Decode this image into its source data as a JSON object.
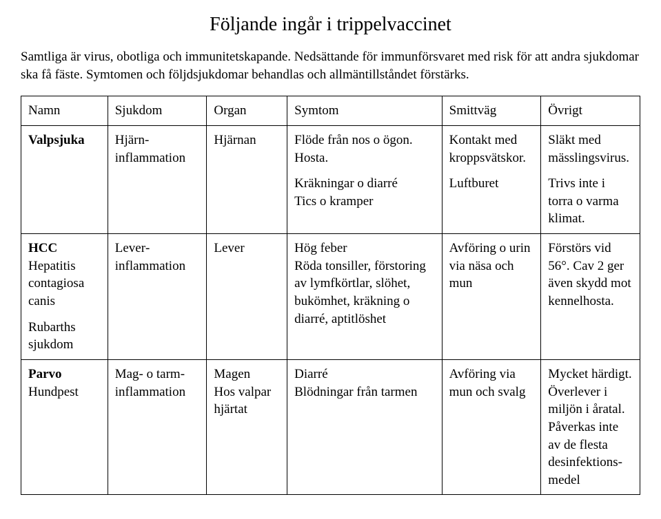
{
  "title": "Följande ingår i trippelvaccinet",
  "intro": "Samtliga är virus, obotliga och immunitetskapande. Nedsättande för immunförsvaret med risk för att andra sjukdomar ska få fäste. Symtomen och följdsjukdomar behandlas och allmäntillståndet förstärks.",
  "headers": {
    "c0": "Namn",
    "c1": "Sjukdom",
    "c2": "Organ",
    "c3": "Symtom",
    "c4": "Smittväg",
    "c5": "Övrigt"
  },
  "rows": {
    "r0": {
      "name": "Valpsjuka",
      "sjukdom": "Hjärn­inflammation",
      "organ": "Hjärnan",
      "symtom_a": "Flöde från nos o ögon. Hosta.",
      "symtom_b": "Kräkningar o diarré",
      "symtom_c": "Tics o kramper",
      "smitt_a": "Kontakt med kroppsvätskor.",
      "smitt_b": "Luftburet",
      "ovrigt_a": "Släkt med mässlingsvirus.",
      "ovrigt_b": "Trivs inte i torra o varma klimat."
    },
    "r1": {
      "name_a": "HCC",
      "name_b": "Hepatitis contagiosa canis",
      "name_c": "Rubarths sjukdom",
      "sjukdom": "Lever­inflammation",
      "organ": "Lever",
      "symtom_a": "Hög feber",
      "symtom_b": "Röda tonsiller, för­storing av lymf­körtlar, slöhet, bukömhet, kräkning o diarré, aptitlöshet",
      "smitt": "Avföring o urin via näsa och mun",
      "ovrigt": "Förstörs vid 56°. Cav 2 ger även skydd mot kennelhosta."
    },
    "r2": {
      "name_a": "Parvo",
      "name_b": "Hundpest",
      "sjukdom": "Mag- o tarm­inflammation",
      "organ_a": "Magen",
      "organ_b": "Hos valpar hjärtat",
      "symtom_a": "Diarré",
      "symtom_b": "Blödningar från tarmen",
      "smitt": "Avföring via mun och svalg",
      "ovrigt": "Mycket härdigt. Överlever i miljön i åratal. Påverkas inte av de flesta desinfektions­medel"
    }
  }
}
